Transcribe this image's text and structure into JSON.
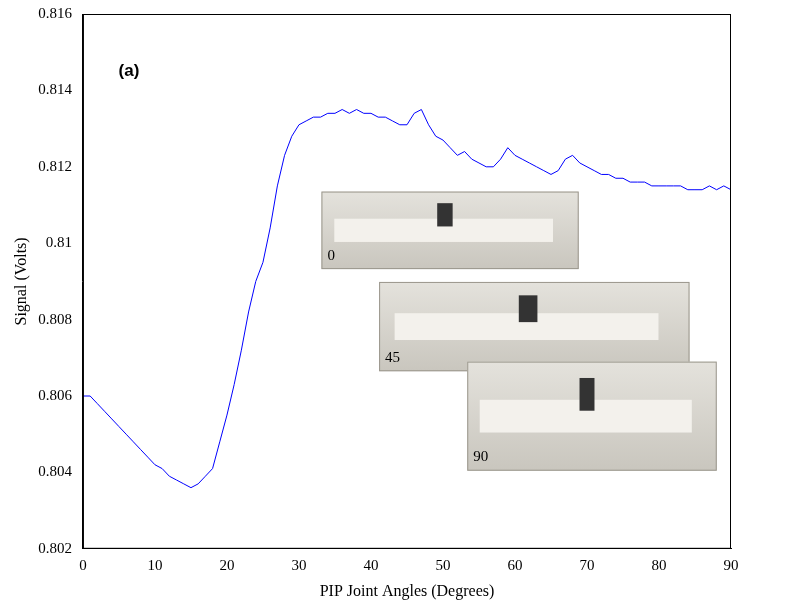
{
  "chart_data": {
    "type": "line",
    "x_label": "PIP Joint Angles (Degrees)",
    "y_label": "Signal (Volts)",
    "annotations": [
      "(a)",
      "0",
      "45",
      "90"
    ],
    "x": [
      0,
      1,
      2,
      3,
      4,
      5,
      6,
      7,
      8,
      9,
      10,
      11,
      12,
      13,
      14,
      15,
      16,
      17,
      18,
      19,
      20,
      21,
      22,
      23,
      24,
      25,
      26,
      27,
      28,
      29,
      30,
      31,
      32,
      33,
      34,
      35,
      36,
      37,
      38,
      39,
      40,
      41,
      42,
      43,
      44,
      45,
      46,
      47,
      48,
      49,
      50,
      51,
      52,
      53,
      54,
      55,
      56,
      57,
      58,
      59,
      60,
      61,
      62,
      63,
      64,
      65,
      66,
      67,
      68,
      69,
      70,
      71,
      72,
      73,
      74,
      75,
      76,
      77,
      78,
      79,
      80,
      81,
      82,
      83,
      84,
      85,
      86,
      87,
      88,
      89,
      90
    ],
    "values": [
      0.806,
      0.806,
      0.8058,
      0.8056,
      0.8054,
      0.8052,
      0.805,
      0.8048,
      0.8046,
      0.8044,
      0.8042,
      0.8041,
      0.8039,
      0.8038,
      0.8037,
      0.8036,
      0.8037,
      0.8039,
      0.8041,
      0.8048,
      0.8055,
      0.8063,
      0.8072,
      0.8082,
      0.809,
      0.8095,
      0.8104,
      0.8115,
      0.8123,
      0.8128,
      0.8131,
      0.8132,
      0.8133,
      0.8133,
      0.8134,
      0.8134,
      0.8135,
      0.8134,
      0.8135,
      0.8134,
      0.8134,
      0.8133,
      0.8133,
      0.8132,
      0.8131,
      0.8131,
      0.8134,
      0.8135,
      0.8131,
      0.8128,
      0.8127,
      0.8125,
      0.8123,
      0.8124,
      0.8122,
      0.8121,
      0.812,
      0.812,
      0.8122,
      0.8125,
      0.8123,
      0.8122,
      0.8121,
      0.812,
      0.8119,
      0.8118,
      0.8119,
      0.8122,
      0.8123,
      0.8121,
      0.812,
      0.8119,
      0.8118,
      0.8118,
      0.8117,
      0.8117,
      0.8116,
      0.8116,
      0.8116,
      0.8115,
      0.8115,
      0.8115,
      0.8115,
      0.8115,
      0.8114,
      0.8114,
      0.8114,
      0.8115,
      0.8114,
      0.8115,
      0.8114
    ],
    "color": "#0000ff",
    "xlim": [
      0,
      90
    ],
    "xticks": [
      0,
      10,
      20,
      30,
      40,
      50,
      60,
      70,
      80,
      90
    ],
    "ylim": [
      0.802,
      0.816
    ],
    "yticks": [
      0.802,
      0.804,
      0.806,
      0.808,
      0.81,
      0.812,
      0.814,
      0.816
    ],
    "grid": false
  }
}
